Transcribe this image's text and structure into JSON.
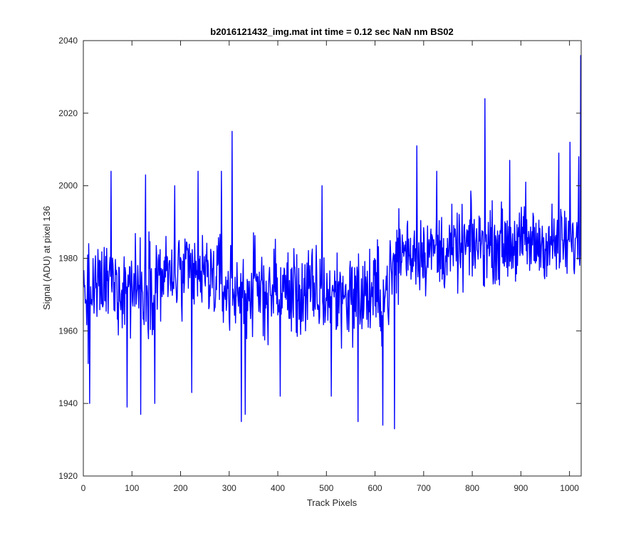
{
  "chart_data": {
    "type": "line",
    "title": "b2016121432_img.mat int time = 0.12 sec  NaN nm BS02",
    "xlabel": "Track Pixels",
    "ylabel": "Signal (ADU) at pixel 136",
    "xlim": [
      0,
      1024
    ],
    "ylim": [
      1920,
      2040
    ],
    "xticks": [
      0,
      100,
      200,
      300,
      400,
      500,
      600,
      700,
      800,
      900,
      1000
    ],
    "yticks": [
      1920,
      1940,
      1960,
      1980,
      2000,
      2020,
      2040
    ],
    "grid": false,
    "legend": "none",
    "series": [
      {
        "color": "#0000ff",
        "x_start": 1,
        "x_step": 1,
        "segments": [
          {
            "from": 1,
            "to": 50,
            "mean": 1971,
            "amp": 17
          },
          {
            "from": 50,
            "to": 150,
            "mean": 1973,
            "amp": 20
          },
          {
            "from": 150,
            "to": 300,
            "mean": 1975,
            "amp": 18
          },
          {
            "from": 300,
            "to": 450,
            "mean": 1971,
            "amp": 19
          },
          {
            "from": 450,
            "to": 650,
            "mean": 1970,
            "amp": 19
          },
          {
            "from": 650,
            "to": 800,
            "mean": 1982,
            "amp": 16
          },
          {
            "from": 800,
            "to": 1024,
            "mean": 1984,
            "amp": 15
          }
        ],
        "notable_points": [
          {
            "x": 10,
            "y": 1951
          },
          {
            "x": 13,
            "y": 1940
          },
          {
            "x": 57,
            "y": 2004
          },
          {
            "x": 90,
            "y": 1939
          },
          {
            "x": 118,
            "y": 1937
          },
          {
            "x": 128,
            "y": 2003
          },
          {
            "x": 147,
            "y": 1940
          },
          {
            "x": 188,
            "y": 2000
          },
          {
            "x": 223,
            "y": 1943
          },
          {
            "x": 236,
            "y": 2004
          },
          {
            "x": 284,
            "y": 2004
          },
          {
            "x": 306,
            "y": 2015
          },
          {
            "x": 325,
            "y": 1935
          },
          {
            "x": 333,
            "y": 1937
          },
          {
            "x": 405,
            "y": 1942
          },
          {
            "x": 491,
            "y": 2000
          },
          {
            "x": 510,
            "y": 1942
          },
          {
            "x": 565,
            "y": 1935
          },
          {
            "x": 616,
            "y": 1934
          },
          {
            "x": 640,
            "y": 1933
          },
          {
            "x": 686,
            "y": 2011
          },
          {
            "x": 727,
            "y": 2004
          },
          {
            "x": 826,
            "y": 2024
          },
          {
            "x": 877,
            "y": 2007
          },
          {
            "x": 910,
            "y": 2001
          },
          {
            "x": 978,
            "y": 2009
          },
          {
            "x": 1001,
            "y": 2012
          },
          {
            "x": 1019,
            "y": 2008
          },
          {
            "x": 1023,
            "y": 2036
          }
        ]
      }
    ]
  }
}
